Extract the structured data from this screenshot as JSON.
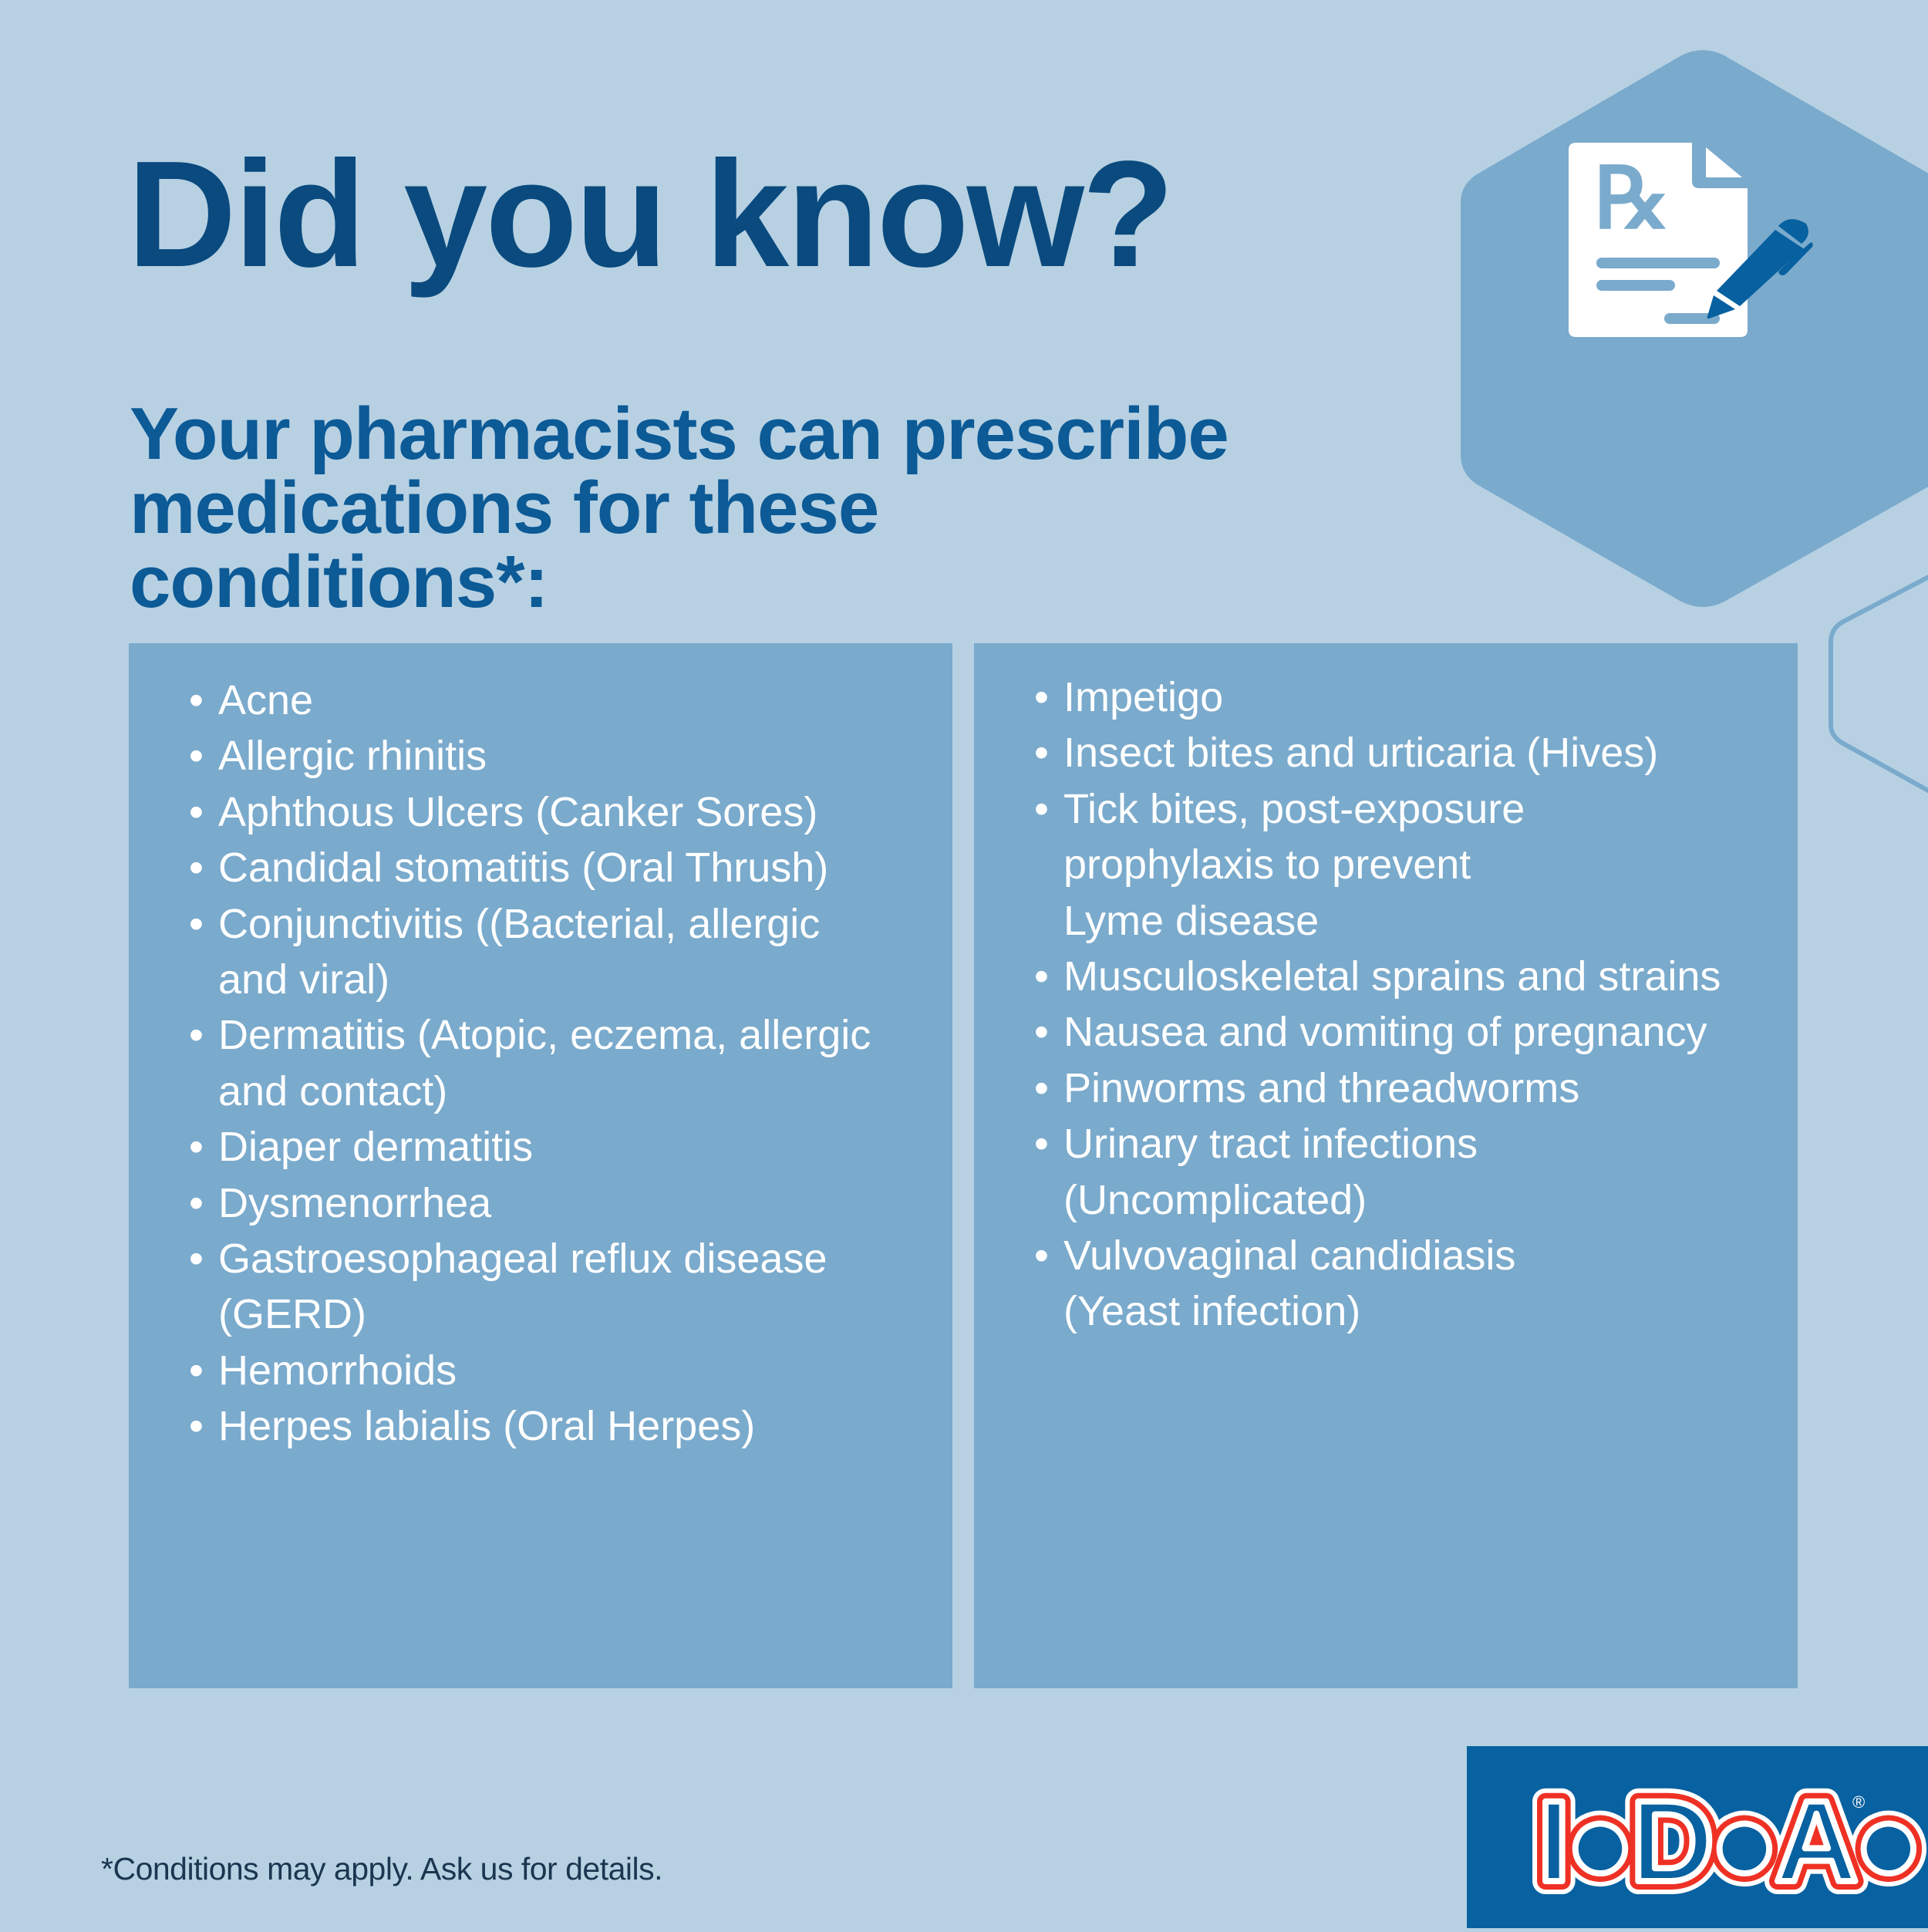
{
  "header": {
    "title": "Did you know?",
    "subtitle_line1": "Your pharmacists can prescribe",
    "subtitle_line2": "medications for these conditions*:"
  },
  "conditions_left": [
    "Acne",
    "Allergic rhinitis",
    "Aphthous Ulcers (Canker Sores)",
    "Candidal stomatitis (Oral Thrush)",
    "Conjunctivitis ((Bacterial, allergic\nand viral)",
    "Dermatitis (Atopic, eczema, allergic\nand contact)",
    "Diaper dermatitis",
    "Dysmenorrhea",
    "Gastroesophageal reflux disease\n(GERD)",
    "Hemorrhoids",
    "Herpes labialis (Oral Herpes)"
  ],
  "conditions_right": [
    "Impetigo",
    "Insect bites and urticaria (Hives)",
    "Tick bites, post-exposure\nprophylaxis to prevent\nLyme disease",
    "Musculoskeletal sprains and strains",
    "Nausea and vomiting of pregnancy",
    "Pinworms and threadworms",
    "Urinary tract infections\n(Uncomplicated)",
    "Vulvovaginal candidiasis\n(Yeast infection)"
  ],
  "bullet": "•",
  "footnote": "*Conditions may apply. Ask us for details.",
  "logo": {
    "text": "I.D.A.",
    "registered": "®"
  },
  "icons": {
    "hero": "prescription-with-pen-icon"
  },
  "colors": {
    "background": "#b7d1e3",
    "panel": "#7aaacc",
    "title": "#0a4a7e",
    "subtitle": "#0c5a96",
    "logo_box": "#0861a0",
    "logo_red": "#ee3124",
    "pen": "#07609f"
  }
}
